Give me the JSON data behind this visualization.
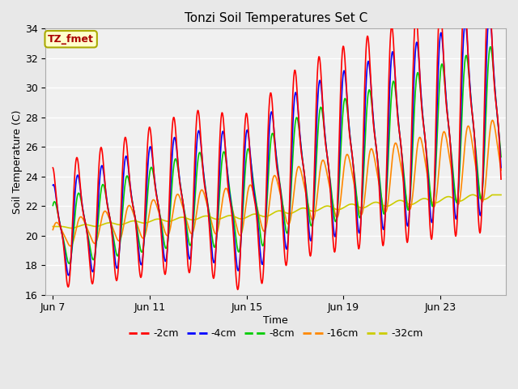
{
  "title": "Tonzi Soil Temperatures Set C",
  "xlabel": "Time",
  "ylabel": "Soil Temperature (C)",
  "ylim": [
    16,
    34
  ],
  "yticks": [
    16,
    18,
    20,
    22,
    24,
    26,
    28,
    30,
    32,
    34
  ],
  "fig_facecolor": "#e8e8e8",
  "plot_facecolor": "#f0f0f0",
  "grid_color": "#ffffff",
  "annotation_text": "TZ_fmet",
  "annotation_bg": "#ffffcc",
  "annotation_border": "#aaaa00",
  "annotation_color": "#aa0000",
  "colors": {
    "-2cm": "#ff0000",
    "-4cm": "#0000ff",
    "-8cm": "#00cc00",
    "-16cm": "#ff8800",
    "-32cm": "#cccc00"
  },
  "legend_labels": [
    "-2cm",
    "-4cm",
    "-8cm",
    "-16cm",
    "-32cm"
  ],
  "x_tick_labels": [
    "Jun 7",
    "Jun 11",
    "Jun 15",
    "Jun 19",
    "Jun 23"
  ],
  "x_tick_positions": [
    0,
    4,
    8,
    12,
    16
  ],
  "xlim": [
    -0.3,
    18.7
  ]
}
